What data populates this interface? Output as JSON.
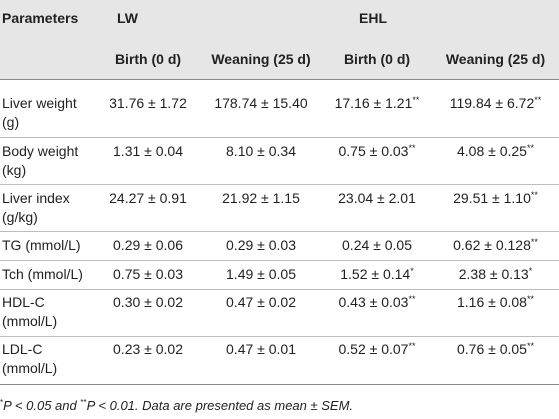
{
  "header": {
    "parameters": "Parameters",
    "group_lw": "LW",
    "group_ehl": "EHL",
    "sub": [
      "Birth (0 d)",
      "Weaning (25 d)",
      "Birth (0 d)",
      "Weaning (25 d)"
    ]
  },
  "rows": [
    {
      "label1": "Liver weight",
      "label2": "(g)",
      "v": [
        "31.76 ± 1.72",
        "178.74 ± 15.40",
        "17.16 ± 1.21",
        "119.84 ± 6.72"
      ],
      "sup": [
        "",
        "",
        "**",
        "**"
      ]
    },
    {
      "label1": "Body weight",
      "label2": "(kg)",
      "v": [
        "1.31 ± 0.04",
        "8.10 ± 0.34",
        "0.75 ± 0.03",
        "4.08 ± 0.25"
      ],
      "sup": [
        "",
        "",
        "**",
        "**"
      ]
    },
    {
      "label1": "Liver index",
      "label2": "(g/kg)",
      "v": [
        "24.27 ± 0.91",
        "21.92 ± 1.15",
        "23.04 ± 2.01",
        "29.51 ± 1.10"
      ],
      "sup": [
        "",
        "",
        "",
        "**"
      ]
    },
    {
      "label1": "TG (mmol/L)",
      "label2": "",
      "v": [
        "0.29 ± 0.06",
        "0.29 ± 0.03",
        "0.24 ± 0.05",
        "0.62 ± 0.128"
      ],
      "sup": [
        "",
        "",
        "",
        "**"
      ]
    },
    {
      "label1": "Tch (mmol/L)",
      "label2": "",
      "v": [
        "0.75 ± 0.03",
        "1.49 ± 0.05",
        "1.52 ± 0.14",
        "2.38 ± 0.13"
      ],
      "sup": [
        "",
        "",
        "*",
        "*"
      ]
    },
    {
      "label1": "HDL-C",
      "label2": "(mmol/L)",
      "v": [
        "0.30 ± 0.02",
        "0.47 ± 0.02",
        "0.43 ± 0.03",
        "1.16 ± 0.08"
      ],
      "sup": [
        "",
        "",
        "**",
        "**"
      ]
    },
    {
      "label1": "LDL-C",
      "label2": "(mmol/L)",
      "v": [
        "0.23 ± 0.02",
        "0.47 ± 0.01",
        "0.52 ± 0.07",
        "0.76 ± 0.05"
      ],
      "sup": [
        "",
        "",
        "**",
        "**"
      ]
    }
  ],
  "footnote": {
    "mark1": "*",
    "text1": "P < 0.05 and ",
    "mark2": "**",
    "text2": "P < 0.01. Data are presented as mean ± SEM."
  }
}
